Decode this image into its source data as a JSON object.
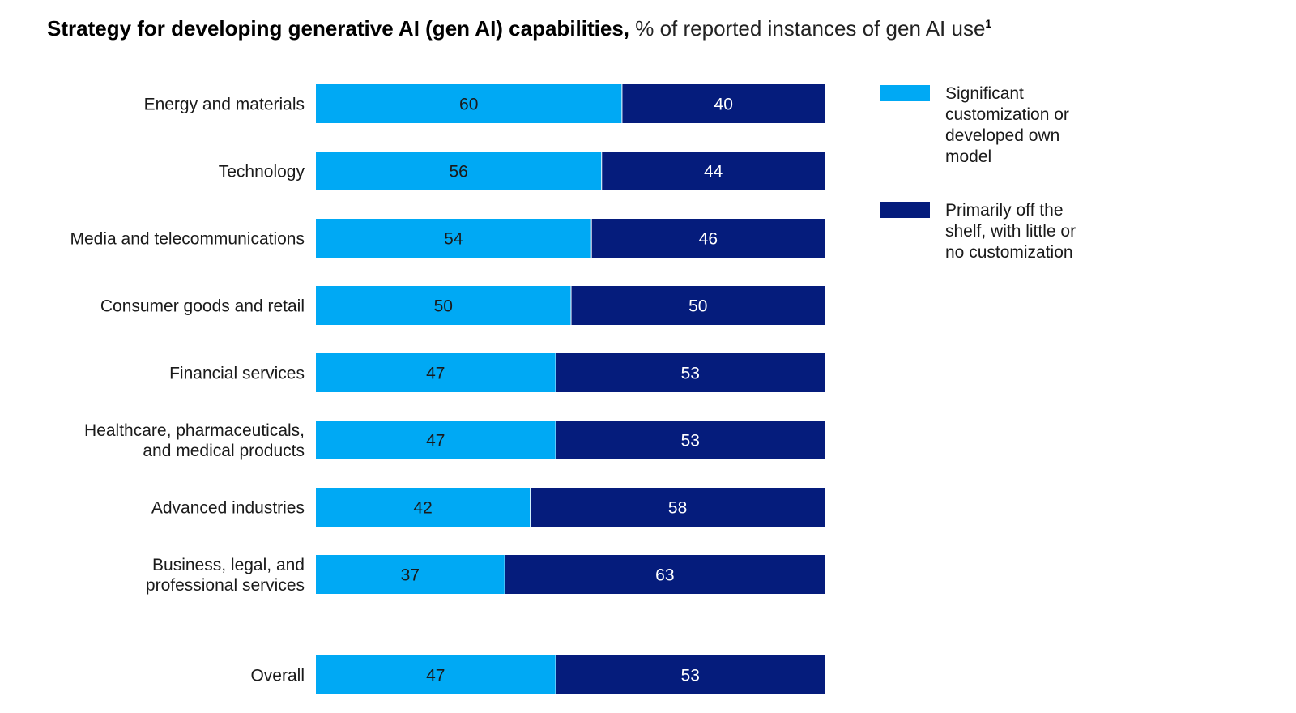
{
  "title": {
    "bold": "Strategy for developing generative AI (gen AI) capabilities,",
    "regular": "% of reported instances of gen AI use",
    "footnote_mark": "1"
  },
  "colors": {
    "series1": "#00a9f4",
    "series2": "#051c7c",
    "series1_text": "#1a1a1a",
    "series2_text": "#ffffff"
  },
  "legend": {
    "items": [
      {
        "label": "Significant customization or developed own model",
        "color": "#00a9f4"
      },
      {
        "label": "Primarily off the shelf, with little or no customization",
        "color": "#051c7c"
      }
    ]
  },
  "chart_data": {
    "type": "bar",
    "orientation": "horizontal",
    "stacked": true,
    "title": "Strategy for developing generative AI (gen AI) capabilities, % of reported instances of gen AI use",
    "xlim": [
      0,
      100
    ],
    "grid": false,
    "legend_position": "right",
    "categories": [
      [
        "Energy and materials"
      ],
      [
        "Technology"
      ],
      [
        "Media and telecommunications"
      ],
      [
        "Consumer goods and retail"
      ],
      [
        "Financial services"
      ],
      [
        "Healthcare, pharmaceuticals,",
        "and medical products"
      ],
      [
        "Advanced industries"
      ],
      [
        "Business, legal, and",
        "professional services"
      ],
      [
        "Overall"
      ]
    ],
    "series": [
      {
        "name": "Significant customization or developed own model",
        "values": [
          60,
          56,
          54,
          50,
          47,
          47,
          42,
          37,
          47
        ]
      },
      {
        "name": "Primarily off the shelf, with little or no customization",
        "values": [
          40,
          44,
          46,
          50,
          53,
          53,
          58,
          63,
          53
        ]
      }
    ]
  }
}
